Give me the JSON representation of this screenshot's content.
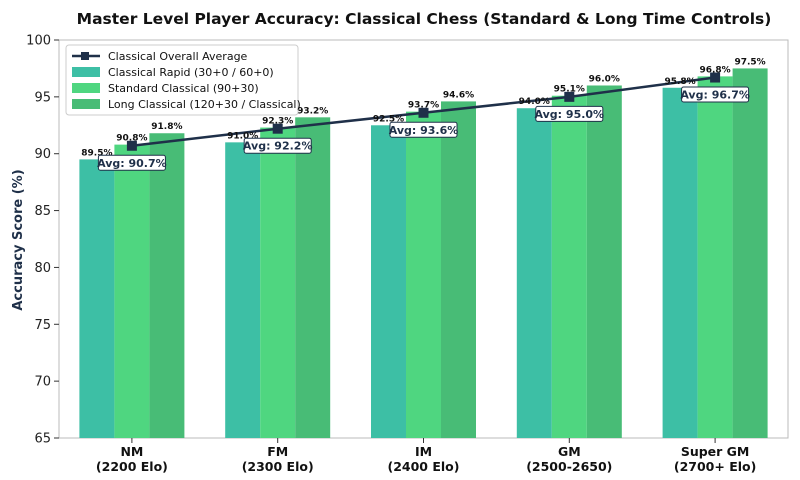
{
  "chart_data": {
    "type": "bar",
    "title": "Master Level Player Accuracy: Classical Chess (Standard & Long Time Controls)",
    "ylabel": "Accuracy Score (%)",
    "xlabel": "",
    "ylim": [
      65,
      100
    ],
    "yticks": [
      65,
      70,
      75,
      80,
      85,
      90,
      95,
      100
    ],
    "grid": false,
    "legend_position": "top-left",
    "categories": [
      [
        "NM",
        "(2200 Elo)"
      ],
      [
        "FM",
        "(2300 Elo)"
      ],
      [
        "IM",
        "(2400 Elo)"
      ],
      [
        "GM",
        "(2500-2650)"
      ],
      [
        "Super GM",
        "(2700+ Elo)"
      ]
    ],
    "series": [
      {
        "name": "Classical Rapid (30+0 / 60+0)",
        "color": "#3dbfa5",
        "values": [
          89.5,
          91.0,
          92.5,
          94.0,
          95.8
        ],
        "labels": [
          "89.5%",
          "91.0%",
          "92.5%",
          "94.0%",
          "95.8%"
        ]
      },
      {
        "name": "Standard Classical (90+30)",
        "color": "#4fd680",
        "values": [
          90.8,
          92.3,
          93.7,
          95.1,
          96.8
        ],
        "labels": [
          "90.8%",
          "92.3%",
          "93.7%",
          "95.1%",
          "96.8%"
        ]
      },
      {
        "name": "Long Classical (120+30 / Classical)",
        "color": "#48bc76",
        "values": [
          91.8,
          93.2,
          94.6,
          96.0,
          97.5
        ],
        "labels": [
          "91.8%",
          "93.2%",
          "94.6%",
          "96.0%",
          "97.5%"
        ]
      }
    ],
    "average_line": {
      "name": "Classical Overall Average",
      "color": "#1f3049",
      "values": [
        90.7,
        92.2,
        93.6,
        95.0,
        96.7
      ],
      "labels": [
        "Avg: 90.7%",
        "Avg: 92.2%",
        "Avg: 93.6%",
        "Avg: 95.0%",
        "Avg: 96.7%"
      ]
    }
  }
}
